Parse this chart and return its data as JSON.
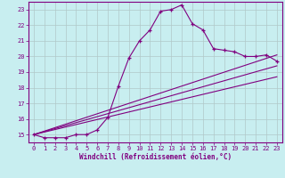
{
  "xlabel": "Windchill (Refroidissement éolien,°C)",
  "bg_color": "#c8eef0",
  "line_color": "#800080",
  "grid_color": "#b0c8c8",
  "xlim": [
    -0.5,
    23.5
  ],
  "ylim": [
    14.5,
    23.5
  ],
  "yticks": [
    15,
    16,
    17,
    18,
    19,
    20,
    21,
    22,
    23
  ],
  "xticks": [
    0,
    1,
    2,
    3,
    4,
    5,
    6,
    7,
    8,
    9,
    10,
    11,
    12,
    13,
    14,
    15,
    16,
    17,
    18,
    19,
    20,
    21,
    22,
    23
  ],
  "series1_x": [
    0,
    1,
    2,
    3,
    4,
    5,
    6,
    7,
    8,
    9,
    10,
    11,
    12,
    13,
    14,
    15,
    16,
    17,
    18,
    19,
    20,
    21,
    22,
    23
  ],
  "series1_y": [
    15.0,
    14.8,
    14.8,
    14.8,
    15.0,
    15.0,
    15.3,
    16.1,
    18.1,
    19.9,
    21.0,
    21.7,
    22.9,
    23.0,
    23.3,
    22.1,
    21.7,
    20.5,
    20.4,
    20.3,
    20.0,
    20.0,
    20.1,
    19.7
  ],
  "series2_x": [
    0,
    23
  ],
  "series2_y": [
    15.0,
    20.1
  ],
  "series3_x": [
    0,
    23
  ],
  "series3_y": [
    15.0,
    18.7
  ],
  "series4_x": [
    0,
    23
  ],
  "series4_y": [
    15.0,
    19.4
  ]
}
